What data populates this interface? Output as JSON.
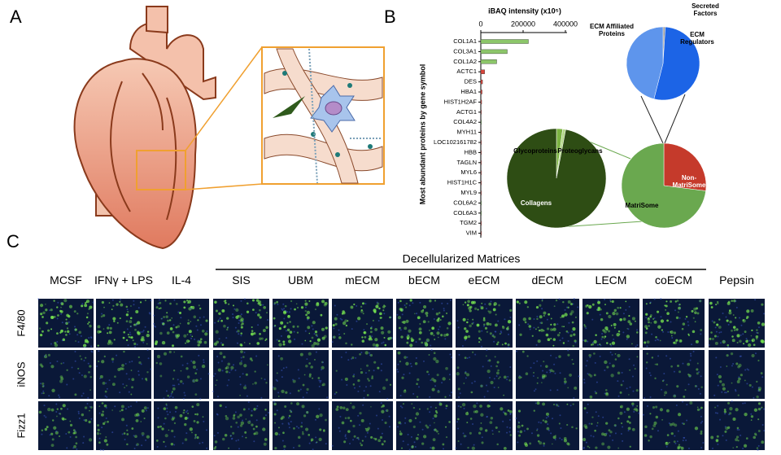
{
  "panels": {
    "a": {
      "label": "A"
    },
    "b": {
      "label": "B"
    },
    "c": {
      "label": "C",
      "group_label": "Decellularized Matrices",
      "columns": [
        "MCSF",
        "IFNγ + LPS",
        "IL-4",
        "SIS",
        "UBM",
        "mECM",
        "bECM",
        "eECM",
        "dECM",
        "LECM",
        "coECM",
        "Pepsin"
      ],
      "rows": [
        "F4/80",
        "iNOS",
        "Fizz1"
      ]
    }
  },
  "chart_data": [
    {
      "type": "bar",
      "orientation": "horizontal",
      "title": "iBAQ intensity (x10⁵)",
      "y_label": "Most abundant proteins by gene symbol",
      "categories": [
        "COL1A1",
        "COL3A1",
        "COL1A2",
        "ACTC1",
        "DES",
        "HBA1",
        "HIST1H2AF",
        "ACTG1",
        "COL4A2",
        "MYH11",
        "LOC102161782",
        "HBB",
        "TAGLN",
        "MYL6",
        "HIST1H1C",
        "MYL9",
        "COL6A2",
        "COL6A3",
        "TGM2",
        "VIM"
      ],
      "values": [
        225000,
        125000,
        75000,
        18000,
        8000,
        6000,
        4000,
        3000,
        2500,
        2000,
        2000,
        1500,
        1500,
        1200,
        1000,
        1000,
        900,
        800,
        700,
        600
      ],
      "colors": [
        "#8cc66a",
        "#8cc66a",
        "#8cc66a",
        "#d9443a",
        "#d9443a",
        "#d9443a",
        "#d9443a",
        "#d9443a",
        "#8cc66a",
        "#d9443a",
        "#d9443a",
        "#d9443a",
        "#d9443a",
        "#d9443a",
        "#d9443a",
        "#d9443a",
        "#8cc66a",
        "#8cc66a",
        "#d9443a",
        "#d9443a"
      ],
      "xlim": [
        0,
        400000
      ],
      "xticks": [
        0,
        200000,
        400000
      ]
    },
    {
      "type": "pie",
      "categories": [
        "Glycoproteins",
        "Proteoglycans",
        "Collagens"
      ],
      "values": [
        2,
        1,
        97
      ],
      "colors": [
        "#7cb342",
        "#b5d98a",
        "#2e4d14"
      ]
    },
    {
      "type": "pie",
      "categories": [
        "Non-MatriSome",
        "MatriSome"
      ],
      "values": [
        27,
        73
      ],
      "colors": [
        "#c53a2b",
        "#6aa84f"
      ]
    },
    {
      "type": "pie",
      "categories": [
        "Secreted Factors",
        "ECM Regulators",
        "ECM Affiliated Proteins"
      ],
      "values": [
        1,
        53,
        46
      ],
      "colors": [
        "#9a9a9a",
        "#1c64e6",
        "#5e95ec"
      ]
    }
  ]
}
